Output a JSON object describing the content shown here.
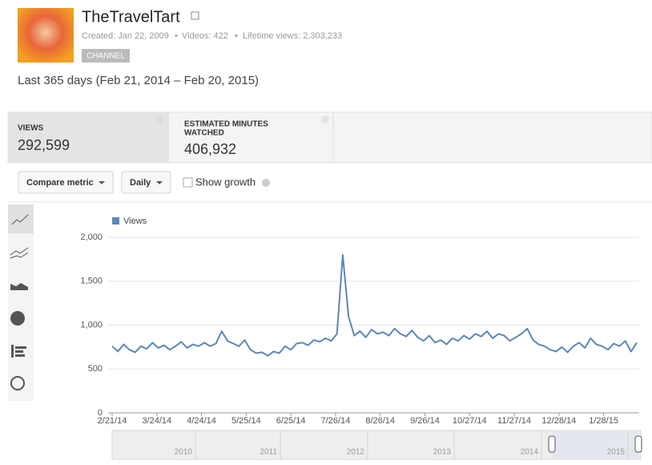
{
  "header": {
    "title": "TheTravelTart",
    "created": "Created: Jan 22, 2009",
    "videos": "Videos: 422",
    "lifetime": "Lifetime views: 2,303,233",
    "badge": "CHANNEL",
    "range": "Last 365 days (Feb 21, 2014 – Feb 20, 2015)"
  },
  "metrics": [
    {
      "label": "VIEWS",
      "value": "292,599"
    },
    {
      "label": "ESTIMATED MINUTES",
      "label2": "WATCHED",
      "value": "406,932"
    }
  ],
  "controls": {
    "compare": "Compare metric",
    "interval": "Daily",
    "growth": "Show growth"
  },
  "chart_data": {
    "type": "line",
    "legend": "Views",
    "x": [
      0,
      4,
      8,
      12,
      16,
      20,
      24,
      28,
      32,
      36,
      40,
      44,
      48,
      52,
      56,
      60,
      64,
      68,
      72,
      76,
      80,
      84,
      88,
      92,
      96,
      100,
      104,
      108,
      112,
      116,
      120,
      124,
      128,
      132,
      136,
      140,
      144,
      148,
      152,
      156,
      160,
      164,
      168,
      172,
      176,
      180,
      184,
      188,
      192,
      196,
      200,
      204,
      208,
      212,
      216,
      220,
      224,
      228,
      232,
      236,
      240,
      244,
      248,
      252,
      256,
      260,
      264,
      268,
      272,
      276,
      280,
      284,
      288,
      292,
      296,
      300,
      304,
      308,
      312,
      316,
      320,
      324,
      328,
      332,
      336,
      340,
      344,
      348,
      352,
      356,
      360,
      364
    ],
    "series": [
      {
        "name": "Views",
        "color": "#5b87b8",
        "values": [
          760,
          700,
          780,
          720,
          690,
          760,
          730,
          800,
          740,
          770,
          720,
          760,
          810,
          740,
          780,
          760,
          800,
          760,
          790,
          930,
          820,
          790,
          760,
          830,
          720,
          680,
          690,
          650,
          700,
          680,
          760,
          720,
          790,
          800,
          770,
          830,
          810,
          850,
          820,
          900,
          1800,
          1100,
          880,
          930,
          860,
          950,
          900,
          920,
          880,
          960,
          900,
          870,
          940,
          860,
          820,
          880,
          800,
          830,
          780,
          850,
          820,
          880,
          840,
          900,
          870,
          930,
          850,
          900,
          880,
          820,
          860,
          900,
          960,
          830,
          780,
          760,
          720,
          700,
          750,
          690,
          760,
          800,
          740,
          850,
          780,
          760,
          720,
          790,
          760,
          820,
          700,
          800
        ]
      }
    ],
    "xlim": [
      0,
      364
    ],
    "xticks": [
      {
        "value": 0,
        "label": "2/21/14"
      },
      {
        "value": 31,
        "label": "3/24/14"
      },
      {
        "value": 62,
        "label": "4/24/14"
      },
      {
        "value": 93,
        "label": "5/25/14"
      },
      {
        "value": 124,
        "label": "6/25/14"
      },
      {
        "value": 155,
        "label": "7/26/14"
      },
      {
        "value": 186,
        "label": "8/26/14"
      },
      {
        "value": 217,
        "label": "9/26/14"
      },
      {
        "value": 248,
        "label": "10/27/14"
      },
      {
        "value": 279,
        "label": "11/27/14"
      },
      {
        "value": 310,
        "label": "12/28/14"
      },
      {
        "value": 341,
        "label": "1/28/15"
      }
    ],
    "ylim": [
      0,
      2000
    ],
    "yticks": [
      0,
      500,
      {
        "value": 1000,
        "label": "1,000"
      },
      {
        "value": 1500,
        "label": "1,500"
      },
      {
        "value": 2000,
        "label": "2,000"
      }
    ],
    "grid": true
  },
  "navigator": {
    "years": [
      "2010",
      "2011",
      "2012",
      "2013",
      "2014",
      "2015"
    ]
  }
}
